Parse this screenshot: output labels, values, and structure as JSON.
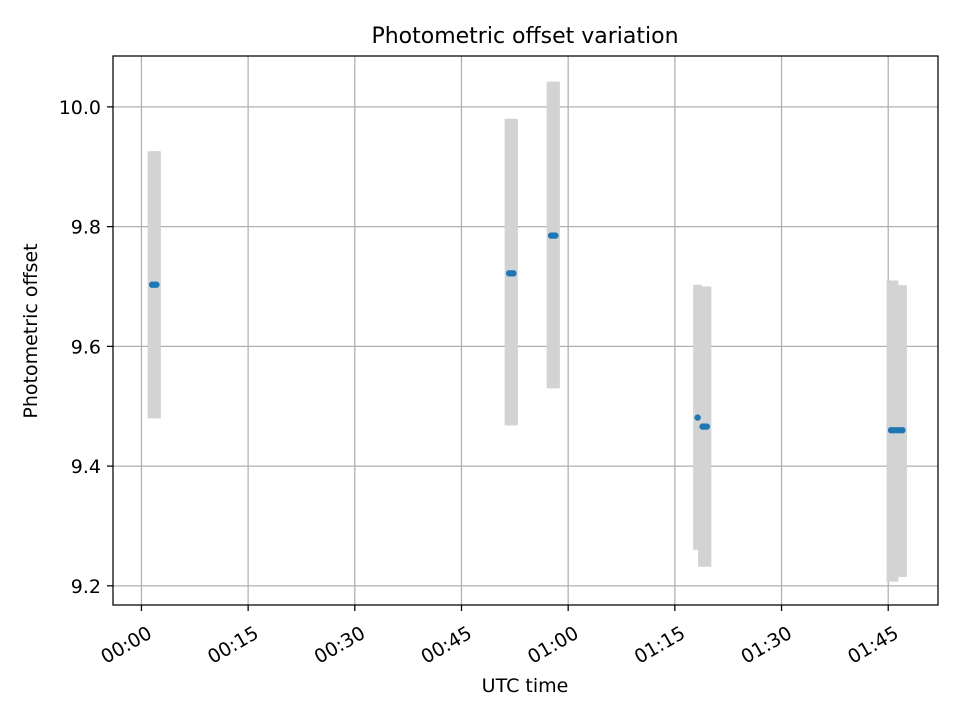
{
  "chart_data": {
    "type": "scatter",
    "title": "Photometric offset variation",
    "xlabel": "UTC time",
    "ylabel": "Photometric offset",
    "x_unit": "minutes",
    "xlim": [
      -4,
      112
    ],
    "ylim": [
      9.168,
      10.085
    ],
    "x_ticks": [
      {
        "value": 0,
        "label": "00:00"
      },
      {
        "value": 15,
        "label": "00:15"
      },
      {
        "value": 30,
        "label": "00:30"
      },
      {
        "value": 45,
        "label": "00:45"
      },
      {
        "value": 60,
        "label": "01:00"
      },
      {
        "value": 75,
        "label": "01:15"
      },
      {
        "value": 90,
        "label": "01:30"
      },
      {
        "value": 105,
        "label": "01:45"
      }
    ],
    "y_ticks": [
      {
        "value": 9.2,
        "label": "9.2"
      },
      {
        "value": 9.4,
        "label": "9.4"
      },
      {
        "value": 9.6,
        "label": "9.6"
      },
      {
        "value": 9.8,
        "label": "9.8"
      },
      {
        "value": 10.0,
        "label": "10.0"
      }
    ],
    "grid": true,
    "colors": {
      "point": "#1f77b4",
      "errorbar": "#d3d3d3",
      "grid": "#b0b0b0"
    },
    "points": [
      {
        "t": "00:01:30",
        "x": 1.5,
        "y": 9.703,
        "low": 9.48,
        "high": 9.926
      },
      {
        "t": "00:01:48",
        "x": 1.8,
        "y": 9.703,
        "low": 9.48,
        "high": 9.926
      },
      {
        "t": "00:02:06",
        "x": 2.1,
        "y": 9.703,
        "low": 9.48,
        "high": 9.926
      },
      {
        "t": "00:51:42",
        "x": 51.7,
        "y": 9.722,
        "low": 9.468,
        "high": 9.98
      },
      {
        "t": "00:52:00",
        "x": 52.0,
        "y": 9.722,
        "low": 9.468,
        "high": 9.98
      },
      {
        "t": "00:52:18",
        "x": 52.3,
        "y": 9.722,
        "low": 9.468,
        "high": 9.98
      },
      {
        "t": "00:57:36",
        "x": 57.6,
        "y": 9.785,
        "low": 9.53,
        "high": 10.042
      },
      {
        "t": "00:57:54",
        "x": 57.9,
        "y": 9.785,
        "low": 9.53,
        "high": 10.042
      },
      {
        "t": "00:58:12",
        "x": 58.2,
        "y": 9.785,
        "low": 9.53,
        "high": 10.042
      },
      {
        "t": "01:18:12",
        "x": 78.2,
        "y": 9.481,
        "low": 9.26,
        "high": 9.703
      },
      {
        "t": "01:18:54",
        "x": 78.9,
        "y": 9.466,
        "low": 9.232,
        "high": 9.7
      },
      {
        "t": "01:19:12",
        "x": 79.2,
        "y": 9.466,
        "low": 9.232,
        "high": 9.7
      },
      {
        "t": "01:19:30",
        "x": 79.5,
        "y": 9.466,
        "low": 9.232,
        "high": 9.7
      },
      {
        "t": "01:45:24",
        "x": 105.4,
        "y": 9.46,
        "low": 9.207,
        "high": 9.71
      },
      {
        "t": "01:45:48",
        "x": 105.8,
        "y": 9.46,
        "low": 9.207,
        "high": 9.71
      },
      {
        "t": "01:46:12",
        "x": 106.2,
        "y": 9.46,
        "low": 9.215,
        "high": 9.702
      },
      {
        "t": "01:46:36",
        "x": 106.6,
        "y": 9.46,
        "low": 9.215,
        "high": 9.702
      },
      {
        "t": "01:47:00",
        "x": 107.0,
        "y": 9.46,
        "low": 9.215,
        "high": 9.702
      }
    ]
  }
}
